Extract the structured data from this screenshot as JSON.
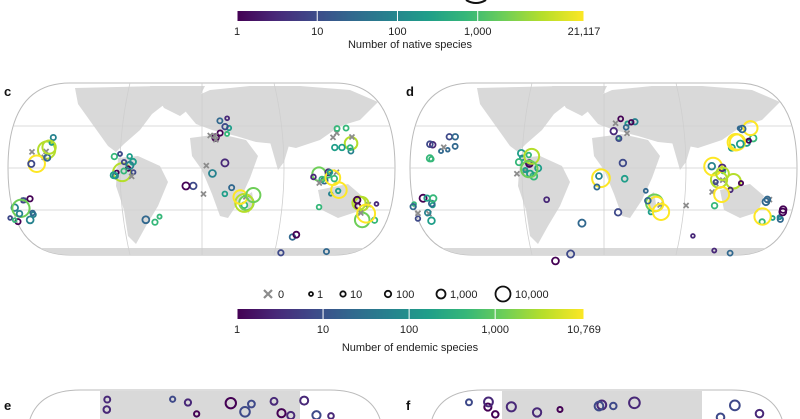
{
  "chart_data": [
    {
      "type": "colorbar",
      "title": "Number of native species",
      "scale": "log",
      "range": [
        1,
        21117
      ],
      "tick_labels": [
        "1",
        "10",
        "100",
        "1,000",
        "21,117"
      ],
      "tick_values": [
        1,
        10,
        100,
        1000,
        21117
      ]
    },
    {
      "type": "scatter",
      "panel": "c",
      "map": "world",
      "description_series": "Native species per island (circle size and colour); crosses mark zero"
    },
    {
      "type": "scatter",
      "panel": "d",
      "map": "world",
      "description_series": "Endemic species per island (circle size and colour); crosses mark zero"
    },
    {
      "type": "legend",
      "label": "size",
      "entries": [
        {
          "label": "0",
          "value": 0,
          "marker": "cross"
        },
        {
          "label": "1",
          "value": 1,
          "marker": "circle"
        },
        {
          "label": "10",
          "value": 10,
          "marker": "circle"
        },
        {
          "label": "100",
          "value": 100,
          "marker": "circle"
        },
        {
          "label": "1,000",
          "value": 1000,
          "marker": "circle"
        },
        {
          "label": "10,000",
          "value": 10000,
          "marker": "circle"
        }
      ]
    },
    {
      "type": "colorbar",
      "title": "Number of endemic species",
      "scale": "log",
      "range": [
        1,
        10769
      ],
      "tick_labels": [
        "1",
        "10",
        "100",
        "1,000",
        "10,769"
      ],
      "tick_values": [
        1,
        10,
        100,
        1000,
        10769
      ]
    }
  ],
  "panels": {
    "c": "c",
    "d": "d",
    "e": "e",
    "f": "f"
  },
  "colors": {
    "viridis": [
      "#440154",
      "#482878",
      "#3e4989",
      "#31688e",
      "#26828e",
      "#1f9e89",
      "#35b779",
      "#6ece58",
      "#b5de2b",
      "#fde725"
    ],
    "land": "#d9d9d9",
    "grid": "#cfcfcf",
    "cross": "#8c8c8c"
  }
}
